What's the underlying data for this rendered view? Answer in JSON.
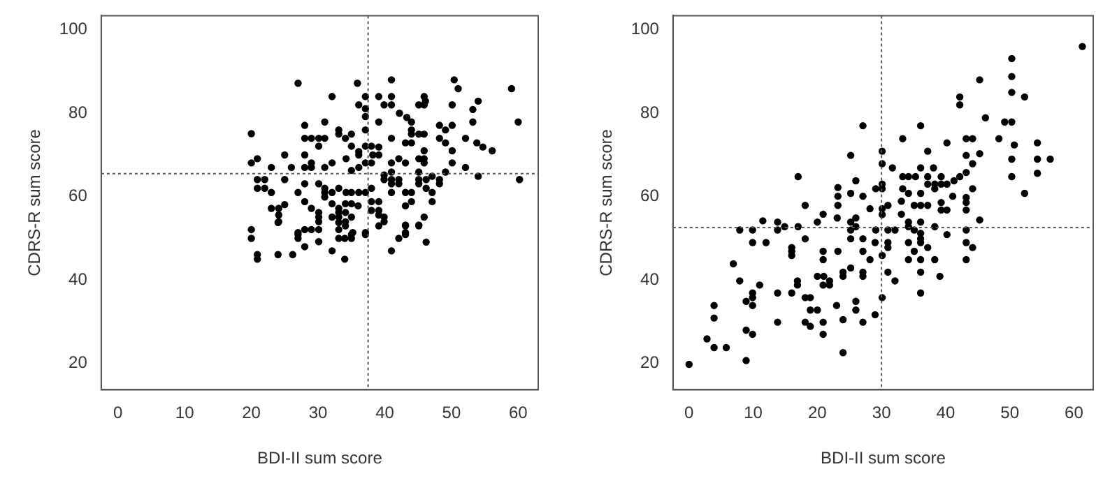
{
  "chart_data": [
    {
      "type": "scatter",
      "xlabel": "BDI-II sum score",
      "ylabel": "CDRS-R sum score",
      "color": "#000000",
      "marker": "circle",
      "grid": false,
      "legend": false,
      "xlim": [
        -2.5,
        63
      ],
      "ylim": [
        13.7,
        103.4
      ],
      "xticks": [
        0,
        10,
        20,
        30,
        40,
        50,
        60
      ],
      "yticks": [
        20,
        40,
        60,
        80,
        100
      ],
      "ref_lines": [
        {
          "axis": "x",
          "value": 37.5,
          "line_style": "dotted",
          "color": "#555555"
        },
        {
          "axis": "y",
          "value": 65.5,
          "line_style": "dotted",
          "color": "#555555"
        }
      ],
      "x": [
        27.0,
        35.9,
        41.0,
        50.4,
        51.0,
        59.0,
        32.1,
        37.1,
        39.1,
        41.0,
        45.9,
        46.1,
        54.0,
        36.1,
        37.1,
        39.9,
        41.0,
        45.1,
        45.9,
        50.1,
        53.2,
        37.1,
        42.2,
        43.3,
        44.0,
        20.0,
        28.0,
        31.0,
        37.1,
        39.1,
        44.0,
        44.0,
        45.1,
        45.9,
        48.2,
        49.1,
        50.1,
        53.2,
        60.0,
        33.1,
        33.1,
        35.0,
        28.0,
        29.0,
        30.1,
        31.0,
        34.1,
        41.0,
        48.2,
        52.1,
        30.1,
        35.0,
        36.1,
        37.1,
        38.0,
        39.1,
        43.1,
        44.0,
        45.9,
        49.1,
        53.8,
        54.7,
        56.1,
        50.1,
        25.0,
        28.0,
        36.1,
        38.2,
        39.1,
        34.2,
        42.1,
        45.1,
        45.9,
        20.9,
        20.0,
        23.0,
        26.0,
        28.0,
        29.0,
        29.0,
        31.0,
        32.1,
        37.1,
        38.0,
        35.0,
        36.1,
        41.0,
        43.1,
        45.9,
        50.1,
        52.1,
        49.1,
        41.0,
        45.1,
        20.9,
        22.0,
        20.9,
        22.0,
        23.0,
        25.0,
        28.0,
        30.1,
        31.0,
        31.0,
        31.0,
        32.1,
        33.1,
        34.2,
        35.0,
        36.1,
        37.1,
        38.0,
        27.0,
        39.9,
        39.9,
        41.0,
        42.1,
        41.0,
        42.1,
        41.0,
        43.1,
        44.0,
        45.1,
        45.1,
        46.2,
        47.1,
        48.2,
        48.2,
        46.2,
        47.1,
        47.1,
        54.0,
        60.2,
        28.0,
        23.0,
        24.1,
        25.0,
        24.1,
        24.1,
        29.0,
        30.1,
        30.1,
        30.1,
        32.1,
        32.1,
        33.1,
        33.1,
        33.1,
        34.1,
        34.1,
        34.1,
        35.0,
        35.0,
        36.0,
        38.0,
        38.0,
        39.1,
        39.1,
        39.9,
        39.9,
        39.1,
        43.1,
        44.0,
        45.9,
        20.0,
        27.0,
        28.0,
        29.0,
        30.1,
        33.1,
        35.2,
        37.1,
        43.1,
        43.1,
        45.1,
        20.0,
        20.9,
        20.9,
        24.0,
        24.0,
        26.2,
        27.0,
        27.0,
        28.0,
        30.1,
        32.1,
        33.1,
        33.1,
        34.0,
        34.0,
        34.1,
        35.0,
        35.0,
        37.1,
        39.1,
        41.0,
        42.1,
        43.1,
        43.1,
        45.1,
        46.2
      ],
      "values": [
        87.2,
        87.2,
        88.0,
        88.0,
        85.9,
        85.9,
        84.0,
        84.0,
        84.0,
        84.0,
        84.0,
        82.9,
        82.9,
        82.0,
        81.1,
        82.0,
        82.0,
        82.0,
        82.0,
        82.0,
        80.9,
        79.2,
        80.0,
        79.0,
        77.9,
        75.1,
        77.1,
        77.9,
        76.0,
        77.9,
        76.0,
        75.0,
        75.0,
        75.0,
        77.1,
        76.0,
        77.1,
        77.9,
        77.9,
        76.0,
        75.0,
        75.0,
        74.0,
        74.0,
        74.0,
        74.0,
        74.0,
        74.0,
        74.0,
        74.0,
        72.1,
        72.1,
        70.8,
        72.1,
        72.1,
        71.9,
        72.9,
        72.9,
        71.0,
        72.9,
        72.9,
        71.9,
        71.0,
        71.0,
        70.0,
        70.0,
        70.0,
        70.0,
        70.0,
        69.1,
        69.1,
        69.1,
        69.1,
        69.1,
        68.1,
        67.0,
        67.0,
        67.0,
        67.0,
        68.1,
        67.0,
        68.1,
        68.1,
        68.1,
        66.3,
        67.0,
        68.1,
        68.1,
        68.1,
        68.1,
        67.0,
        65.9,
        65.9,
        65.9,
        64.1,
        64.1,
        62.0,
        62.0,
        61.0,
        64.1,
        63.1,
        63.1,
        62.0,
        61.0,
        59.9,
        61.0,
        62.0,
        61.0,
        61.0,
        61.0,
        61.0,
        62.0,
        61.0,
        65.2,
        64.1,
        64.1,
        64.1,
        63.1,
        63.1,
        61.0,
        61.0,
        61.0,
        64.1,
        63.1,
        64.1,
        64.9,
        64.1,
        63.1,
        62.0,
        61.0,
        58.8,
        64.9,
        64.1,
        58.8,
        57.2,
        57.2,
        58.1,
        55.6,
        54.0,
        57.2,
        56.2,
        55.1,
        54.0,
        58.3,
        55.1,
        57.2,
        56.2,
        55.1,
        58.3,
        56.2,
        54.0,
        58.3,
        55.1,
        57.8,
        58.8,
        56.7,
        58.8,
        55.6,
        55.1,
        54.0,
        56.7,
        57.8,
        58.8,
        55.1,
        52.1,
        51.4,
        52.1,
        52.1,
        52.1,
        52.1,
        51.4,
        51.4,
        53.2,
        51.4,
        53.2,
        50.0,
        46.1,
        45.0,
        53.8,
        46.1,
        46.1,
        50.9,
        50.0,
        48.0,
        49.2,
        47.0,
        53.8,
        50.0,
        50.0,
        45.0,
        53.0,
        50.9,
        50.0,
        50.9,
        53.0,
        47.0,
        50.0,
        53.0,
        50.9,
        53.0,
        49.1
      ]
    },
    {
      "type": "scatter",
      "xlabel": "BDI-II sum score",
      "ylabel": "CDRS-R sum score",
      "color": "#000000",
      "marker": "circle",
      "grid": false,
      "legend": false,
      "xlim": [
        -2.5,
        63
      ],
      "ylim": [
        13.7,
        103.4
      ],
      "xticks": [
        0,
        10,
        20,
        30,
        40,
        50,
        60
      ],
      "yticks": [
        20,
        40,
        60,
        80,
        100
      ],
      "ref_lines": [
        {
          "axis": "x",
          "value": 30,
          "line_style": "dotted",
          "color": "#555555"
        },
        {
          "axis": "y",
          "value": 52.6,
          "line_style": "dotted",
          "color": "#555555"
        }
      ],
      "x": [
        61.3,
        50.3,
        50.3,
        50.3,
        52.3,
        42.2,
        42.2,
        45.3,
        46.2,
        49.2,
        50.3,
        27.1,
        36.1,
        48.3,
        33.3,
        43.2,
        44.2,
        50.7,
        54.3,
        40.2,
        30.1,
        37.2,
        25.2,
        43.2,
        45.3,
        50.3,
        54.3,
        56.3,
        44.2,
        30.1,
        31.7,
        36.1,
        38.1,
        43.2,
        54.3,
        17.0,
        33.3,
        34.2,
        35.3,
        37.2,
        39.3,
        42.2,
        50.3,
        26.0,
        30.1,
        30.1,
        37.2,
        38.3,
        39.3,
        40.2,
        41.3,
        23.2,
        29.1,
        33.3,
        34.2,
        36.1,
        38.3,
        44.2,
        52.3,
        23.2,
        25.2,
        27.1,
        41.1,
        43.2,
        33.1,
        35.1,
        36.1,
        37.2,
        39.3,
        39.3,
        40.2,
        43.2,
        43.2,
        18.1,
        23.2,
        31.0,
        28.2,
        30.1,
        30.1,
        20.9,
        26.0,
        23.1,
        33.1,
        20.0,
        11.5,
        13.8,
        13.8,
        14.9,
        17.0,
        25.2,
        25.2,
        26.0,
        34.2,
        34.2,
        35.1,
        36.1,
        38.3,
        45.3,
        7.9,
        9.9,
        29.1,
        31.0,
        32.1,
        36.1,
        40.2,
        43.2,
        9.9,
        12.0,
        16.0,
        16.0,
        16.0,
        18.1,
        20.9,
        20.9,
        23.2,
        25.2,
        27.1,
        27.1,
        29.0,
        28.2,
        30.1,
        31.0,
        31.0,
        34.2,
        35.1,
        34.2,
        36.1,
        36.1,
        36.1,
        36.1,
        36.1,
        37.2,
        38.3,
        43.2,
        43.2,
        44.2,
        6.9,
        7.9,
        8.9,
        8.9,
        9.9,
        9.9,
        9.9,
        9.9,
        11.0,
        3.9,
        3.9,
        2.8,
        3.9,
        5.8,
        0,
        8.9,
        13.8,
        13.8,
        16.0,
        16.9,
        16.9,
        18.1,
        18.9,
        18.1,
        18.9,
        18.9,
        20.0,
        20.0,
        21.0,
        20.9,
        21.9,
        21.9,
        20.9,
        20.9,
        23.0,
        24.0,
        24.0,
        24.0,
        24.0,
        25.2,
        26.0,
        26.0,
        27.1,
        27.1,
        27.1,
        29.0,
        30.1,
        31.0,
        32.1,
        39.1
      ],
      "values": [
        96.0,
        93.1,
        88.8,
        85.0,
        83.9,
        83.9,
        82.0,
        88.0,
        78.9,
        77.9,
        77.9,
        77.0,
        77.0,
        73.9,
        73.9,
        73.9,
        73.9,
        72.4,
        72.9,
        72.9,
        70.9,
        70.9,
        69.9,
        69.9,
        70.3,
        69.0,
        69.0,
        69.0,
        67.9,
        67.9,
        66.9,
        66.9,
        66.9,
        65.8,
        65.6,
        64.8,
        64.8,
        64.8,
        64.8,
        64.8,
        64.8,
        64.8,
        64.8,
        63.8,
        63.0,
        61.9,
        63.0,
        63.0,
        63.0,
        63.0,
        63.8,
        62.2,
        61.9,
        61.9,
        60.8,
        60.8,
        61.9,
        61.9,
        60.8,
        60.1,
        60.8,
        60.1,
        60.1,
        59.8,
        58.9,
        57.9,
        57.9,
        57.9,
        58.6,
        56.8,
        56.8,
        58.6,
        56.8,
        57.9,
        57.9,
        57.9,
        57.1,
        57.1,
        55.7,
        55.8,
        54.9,
        54.9,
        55.8,
        53.9,
        54.2,
        53.9,
        52.0,
        52.8,
        52.8,
        53.9,
        52.0,
        52.8,
        53.9,
        52.8,
        52.0,
        53.9,
        52.8,
        54.4,
        52.0,
        52.0,
        52.0,
        52.0,
        52.0,
        51.2,
        50.9,
        52.0,
        49.0,
        49.0,
        47.8,
        46.9,
        45.9,
        49.9,
        46.9,
        44.9,
        46.9,
        49.9,
        49.9,
        46.9,
        49.0,
        44.9,
        45.9,
        49.0,
        47.8,
        49.0,
        46.9,
        44.9,
        49.9,
        49.0,
        44.9,
        41.9,
        36.9,
        47.8,
        44.9,
        49.0,
        44.9,
        47.8,
        43.9,
        39.8,
        34.9,
        28.0,
        36.9,
        35.8,
        33.9,
        27.0,
        38.8,
        33.9,
        30.9,
        25.9,
        23.8,
        23.8,
        19.8,
        20.7,
        36.9,
        29.9,
        36.9,
        39.8,
        38.8,
        35.8,
        35.8,
        29.9,
        28.9,
        32.8,
        32.8,
        40.9,
        40.9,
        38.8,
        39.8,
        38.8,
        29.9,
        27.0,
        33.9,
        41.9,
        40.9,
        30.5,
        22.6,
        42.9,
        34.9,
        32.8,
        41.9,
        40.9,
        29.9,
        31.7,
        35.8,
        41.9,
        39.8,
        40.9
      ]
    }
  ]
}
